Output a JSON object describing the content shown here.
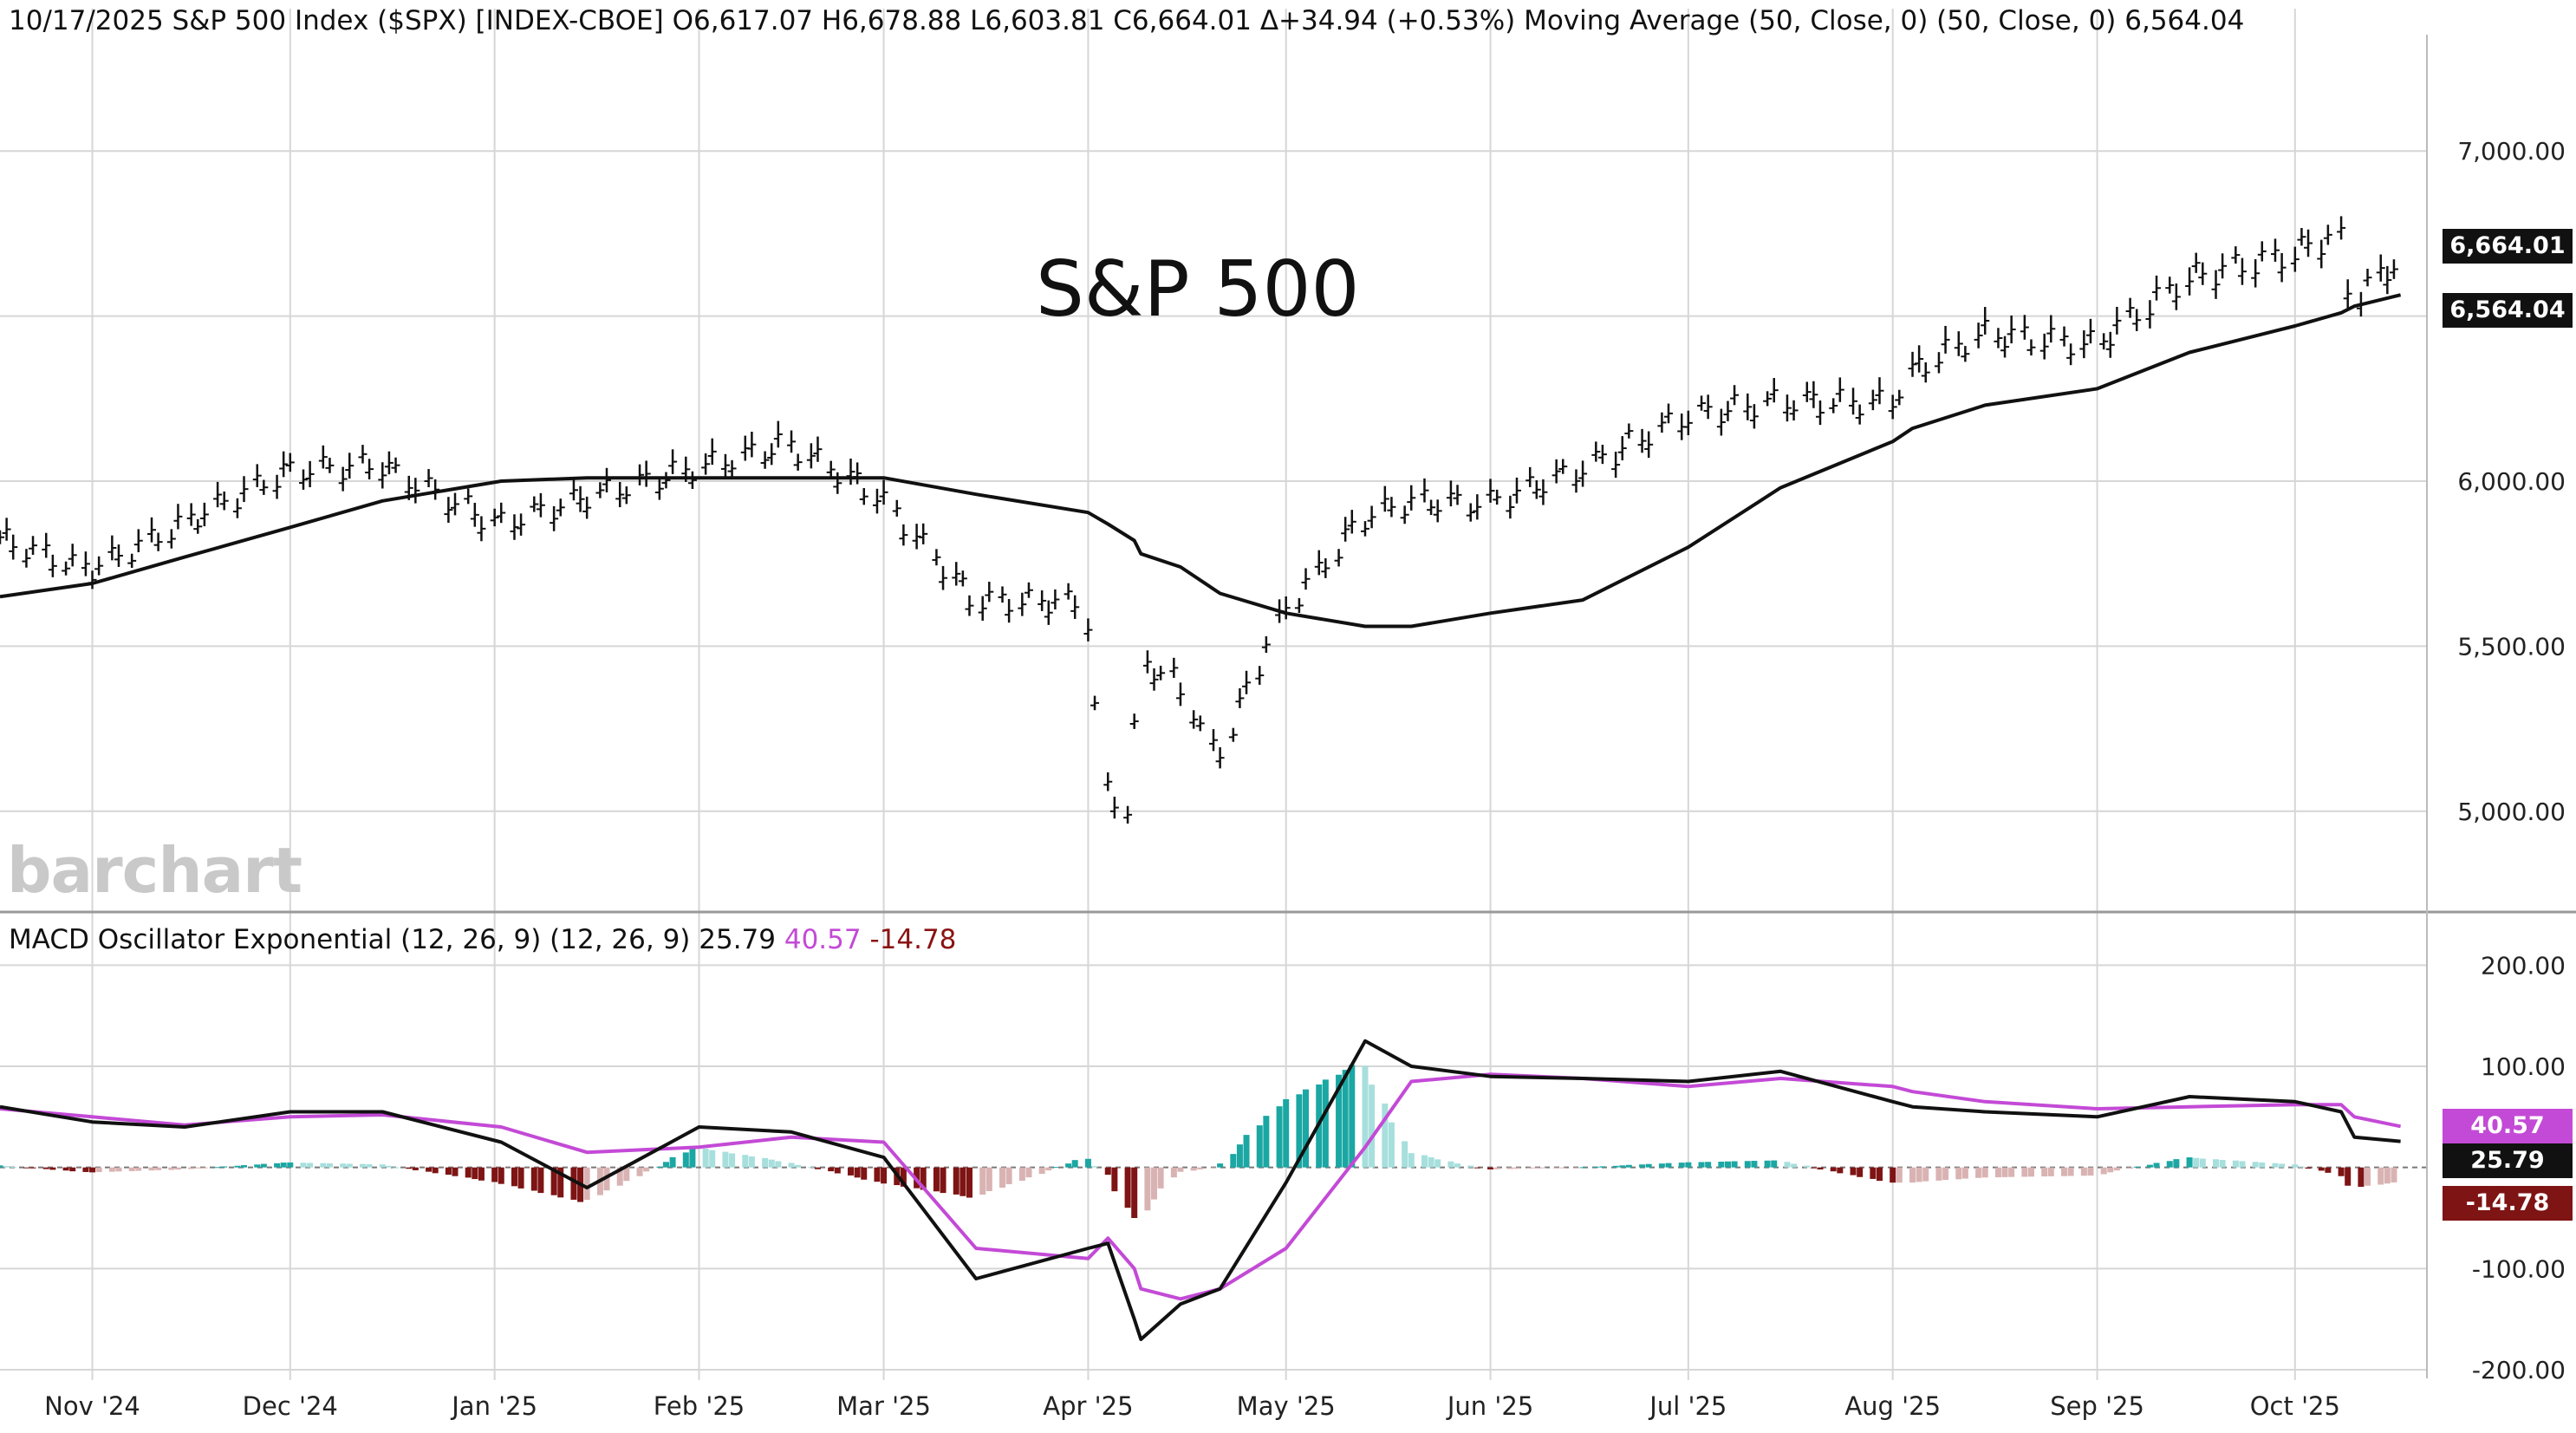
{
  "header": {
    "price_line": "10/17/2025 S&P 500 Index ($SPX) [INDEX-CBOE] O6,617.07 H6,678.88 L6,603.81 C6,664.01 Δ+34.94 (+0.53%) Moving Average (50, Close, 0)  (50, Close, 0) 6,564.04",
    "macd_label": "MACD Oscillator Exponential (12, 26, 9)  (12, 26, 9) 25.79",
    "macd_signal": "40.57",
    "macd_hist": "-14.78"
  },
  "title_overlay": "S&P 500",
  "watermark": "barchart",
  "badges": {
    "last_close": "6,664.01",
    "ma_value": "6,564.04",
    "macd_value": "25.79",
    "hist_value": "-14.78",
    "signal_value": "40.57"
  },
  "colors": {
    "price_bar": "#111111",
    "ma_line": "#111111",
    "macd_line": "#111111",
    "signal_line": "#c34ad6",
    "hist_pos_strong": "#1ba7a3",
    "hist_pos_weak": "#a7dfdd",
    "hist_neg_strong": "#7e1414",
    "hist_neg_weak": "#d9b3b3",
    "grid": "#d6d6d6"
  },
  "chart_data": [
    {
      "type": "line",
      "panel": "price",
      "title": "S&P 500",
      "x": [
        "2024-10-18",
        "2024-11-01",
        "2024-11-15",
        "2024-12-01",
        "2024-12-15",
        "2025-01-02",
        "2025-01-15",
        "2025-02-01",
        "2025-02-15",
        "2025-03-01",
        "2025-03-15",
        "2025-04-01",
        "2025-04-04",
        "2025-04-08",
        "2025-04-09",
        "2025-04-15",
        "2025-04-21",
        "2025-05-01",
        "2025-05-13",
        "2025-05-20",
        "2025-06-01",
        "2025-06-15",
        "2025-07-01",
        "2025-07-15",
        "2025-08-01",
        "2025-08-04",
        "2025-08-15",
        "2025-09-01",
        "2025-09-15",
        "2025-10-01",
        "2025-10-08",
        "2025-10-10",
        "2025-10-17"
      ],
      "series": [
        {
          "type": "ohlc",
          "close": [
            5830,
            5729,
            5870,
            6032,
            6050,
            5869,
            5950,
            6040,
            6114,
            5955,
            5640,
            5633,
            5074,
            4982,
            5456,
            5396,
            5158,
            5604,
            5886,
            5940,
            5935,
            6034,
            6198,
            6243,
            6238,
            6329,
            6449,
            6415,
            6615,
            6688,
            6753,
            6552,
            6664
          ]
        },
        {
          "name": "Moving Average (50, Close, 0)",
          "values": [
            5650,
            5690,
            5770,
            5860,
            5940,
            6000,
            6010,
            6010,
            6010,
            6010,
            5960,
            5905,
            5870,
            5820,
            5780,
            5740,
            5660,
            5600,
            5560,
            5560,
            5600,
            5640,
            5800,
            5980,
            6120,
            6160,
            6230,
            6280,
            6390,
            6470,
            6510,
            6530,
            6564
          ]
        }
      ],
      "ylim": [
        4700,
        7300
      ],
      "yticks": [
        7000,
        6500,
        6000,
        5500,
        5000
      ],
      "ytick_labels": [
        "7,000.00",
        "6,500.00",
        "6,000.00",
        "5,500.00",
        "5,000.00"
      ]
    },
    {
      "type": "line",
      "panel": "macd",
      "title": "MACD Oscillator Exponential (12, 26, 9)",
      "x": [
        "2024-10-18",
        "2024-11-01",
        "2024-11-15",
        "2024-12-01",
        "2024-12-15",
        "2025-01-02",
        "2025-01-15",
        "2025-02-01",
        "2025-02-15",
        "2025-03-01",
        "2025-03-15",
        "2025-04-01",
        "2025-04-04",
        "2025-04-08",
        "2025-04-09",
        "2025-04-15",
        "2025-04-21",
        "2025-05-01",
        "2025-05-13",
        "2025-05-20",
        "2025-06-01",
        "2025-06-15",
        "2025-07-01",
        "2025-07-15",
        "2025-08-01",
        "2025-08-04",
        "2025-08-15",
        "2025-09-01",
        "2025-09-15",
        "2025-10-01",
        "2025-10-08",
        "2025-10-10",
        "2025-10-17"
      ],
      "series": [
        {
          "name": "MACD",
          "values": [
            60,
            45,
            40,
            55,
            55,
            25,
            -20,
            40,
            35,
            10,
            -110,
            -80,
            -75,
            -150,
            -170,
            -135,
            -120,
            -15,
            125,
            100,
            90,
            88,
            85,
            95,
            65,
            60,
            55,
            50,
            70,
            65,
            55,
            30,
            25.79
          ]
        },
        {
          "name": "Signal",
          "values": [
            58,
            50,
            42,
            50,
            52,
            40,
            15,
            20,
            30,
            25,
            -80,
            -90,
            -70,
            -100,
            -120,
            -130,
            -120,
            -80,
            20,
            85,
            92,
            88,
            80,
            88,
            80,
            75,
            65,
            58,
            60,
            62,
            62,
            50,
            40.57
          ]
        },
        {
          "name": "Histogram",
          "values": [
            2,
            -5,
            -2,
            5,
            3,
            -15,
            -35,
            20,
            5,
            -15,
            -30,
            10,
            -5,
            -50,
            -50,
            -5,
            0,
            65,
            105,
            15,
            -2,
            0,
            5,
            7,
            -15,
            -15,
            -10,
            -8,
            10,
            3,
            -7,
            -20,
            -14.78
          ]
        }
      ],
      "ylim": [
        -200,
        220
      ],
      "yticks": [
        200,
        100,
        -100,
        -200
      ],
      "ytick_labels": [
        "200.00",
        "100.00",
        "-100.00",
        "-200.00"
      ]
    }
  ],
  "x_axis": {
    "labels": [
      "Nov '24",
      "Dec '24",
      "Jan '25",
      "Feb '25",
      "Mar '25",
      "Apr '25",
      "May '25",
      "Jun '25",
      "Jul '25",
      "Aug '25",
      "Sep '25",
      "Oct '25"
    ],
    "dates": [
      "2024-11-01",
      "2024-12-01",
      "2025-01-01",
      "2025-02-01",
      "2025-03-01",
      "2025-04-01",
      "2025-05-01",
      "2025-06-01",
      "2025-07-01",
      "2025-08-01",
      "2025-09-01",
      "2025-10-01"
    ]
  }
}
